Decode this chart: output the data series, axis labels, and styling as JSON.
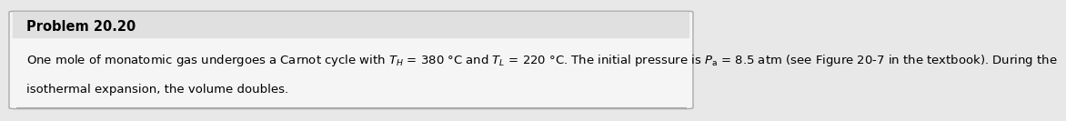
{
  "title": "Problem 20.20",
  "body_line1": "One mole of monatomic gas undergoes a Carnot cycle with $T_{H}$ = 380 °C and $T_{L}$ = 220 °C. The initial pressure is $P_{\\mathrm{a}}$ = 8.5 atm (see Figure 20-7 in the textbook). During the",
  "body_line2": "isothermal expansion, the volume doubles.",
  "bg_outer": "#e8e8e8",
  "bg_inner": "#f5f5f5",
  "title_fontsize": 10.5,
  "body_fontsize": 9.5,
  "title_color": "#000000",
  "body_color": "#000000",
  "border_color": "#aaaaaa",
  "title_strip_color": "#e0e0e0"
}
